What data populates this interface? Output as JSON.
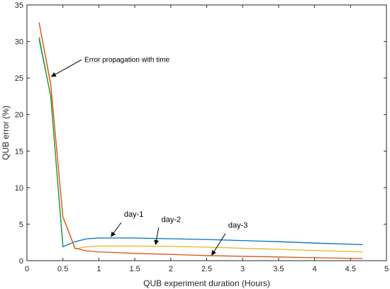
{
  "chart_data": {
    "type": "line",
    "title": "",
    "xlabel": "QUB experiment duration (Hours)",
    "ylabel": "QUB error (%)",
    "xlim": [
      0,
      5
    ],
    "ylim": [
      0,
      35
    ],
    "xticks": [
      0,
      0.5,
      1,
      1.5,
      2,
      2.5,
      3,
      3.5,
      4,
      4.5,
      5
    ],
    "xtick_labels": [
      "0",
      "0.5",
      "1",
      "1.5",
      "2",
      "2.5",
      "3",
      "3.5",
      "4",
      "4.5",
      "5"
    ],
    "yticks": [
      0,
      5,
      10,
      15,
      20,
      25,
      30,
      35
    ],
    "ytick_labels": [
      "0",
      "5",
      "10",
      "15",
      "20",
      "25",
      "30",
      "35"
    ],
    "grid": false,
    "colors": {
      "day1": "#0072BD",
      "day2": "#EDB120",
      "day3": "#D95319",
      "green": "#2CA02C"
    },
    "series": [
      {
        "name": "day-1",
        "color": "#0072BD",
        "x": [
          0.17,
          0.33,
          0.5,
          0.67,
          0.83,
          1.0,
          1.5,
          2.0,
          2.5,
          3.0,
          3.5,
          4.0,
          4.67
        ],
        "y": [
          30.3,
          22.5,
          1.9,
          2.6,
          3.0,
          3.1,
          3.1,
          3.0,
          2.9,
          2.75,
          2.6,
          2.4,
          2.2
        ]
      },
      {
        "name": "day-2",
        "color": "#EDB120",
        "x": [
          0.17,
          0.33,
          0.5,
          0.67,
          0.83,
          1.0,
          1.5,
          2.0,
          2.5,
          3.0,
          3.5,
          4.0,
          4.67
        ],
        "y": [
          32.5,
          24.0,
          6.0,
          1.6,
          1.9,
          2.0,
          2.0,
          1.95,
          1.85,
          1.7,
          1.55,
          1.4,
          1.2
        ]
      },
      {
        "name": "day-3",
        "color": "#D95319",
        "x": [
          0.17,
          0.33,
          0.5,
          0.67,
          0.83,
          1.0,
          1.5,
          2.0,
          2.5,
          3.0,
          3.5,
          4.0,
          4.67
        ],
        "y": [
          32.6,
          24.2,
          6.0,
          1.7,
          1.35,
          1.2,
          1.0,
          0.85,
          0.7,
          0.6,
          0.5,
          0.4,
          0.3
        ]
      },
      {
        "name": "",
        "color": "#2CA02C",
        "x": [
          0.17,
          0.33,
          0.5
        ],
        "y": [
          30.6,
          22.5,
          2.2
        ]
      }
    ],
    "annotations": [
      {
        "text": "Error propagation with time",
        "text_x": 0.8,
        "text_y": 27.5,
        "arrow_to": [
          0.34,
          25.2
        ]
      },
      {
        "text": "day-1",
        "text_x": 1.35,
        "text_y": 5.6,
        "arrow_to": [
          1.17,
          3.3
        ]
      },
      {
        "text": "day-2",
        "text_x": 1.87,
        "text_y": 4.9,
        "arrow_to": [
          1.79,
          2.2
        ]
      },
      {
        "text": "day-3",
        "text_x": 2.8,
        "text_y": 4.1,
        "arrow_to": [
          2.57,
          0.75
        ]
      }
    ]
  }
}
